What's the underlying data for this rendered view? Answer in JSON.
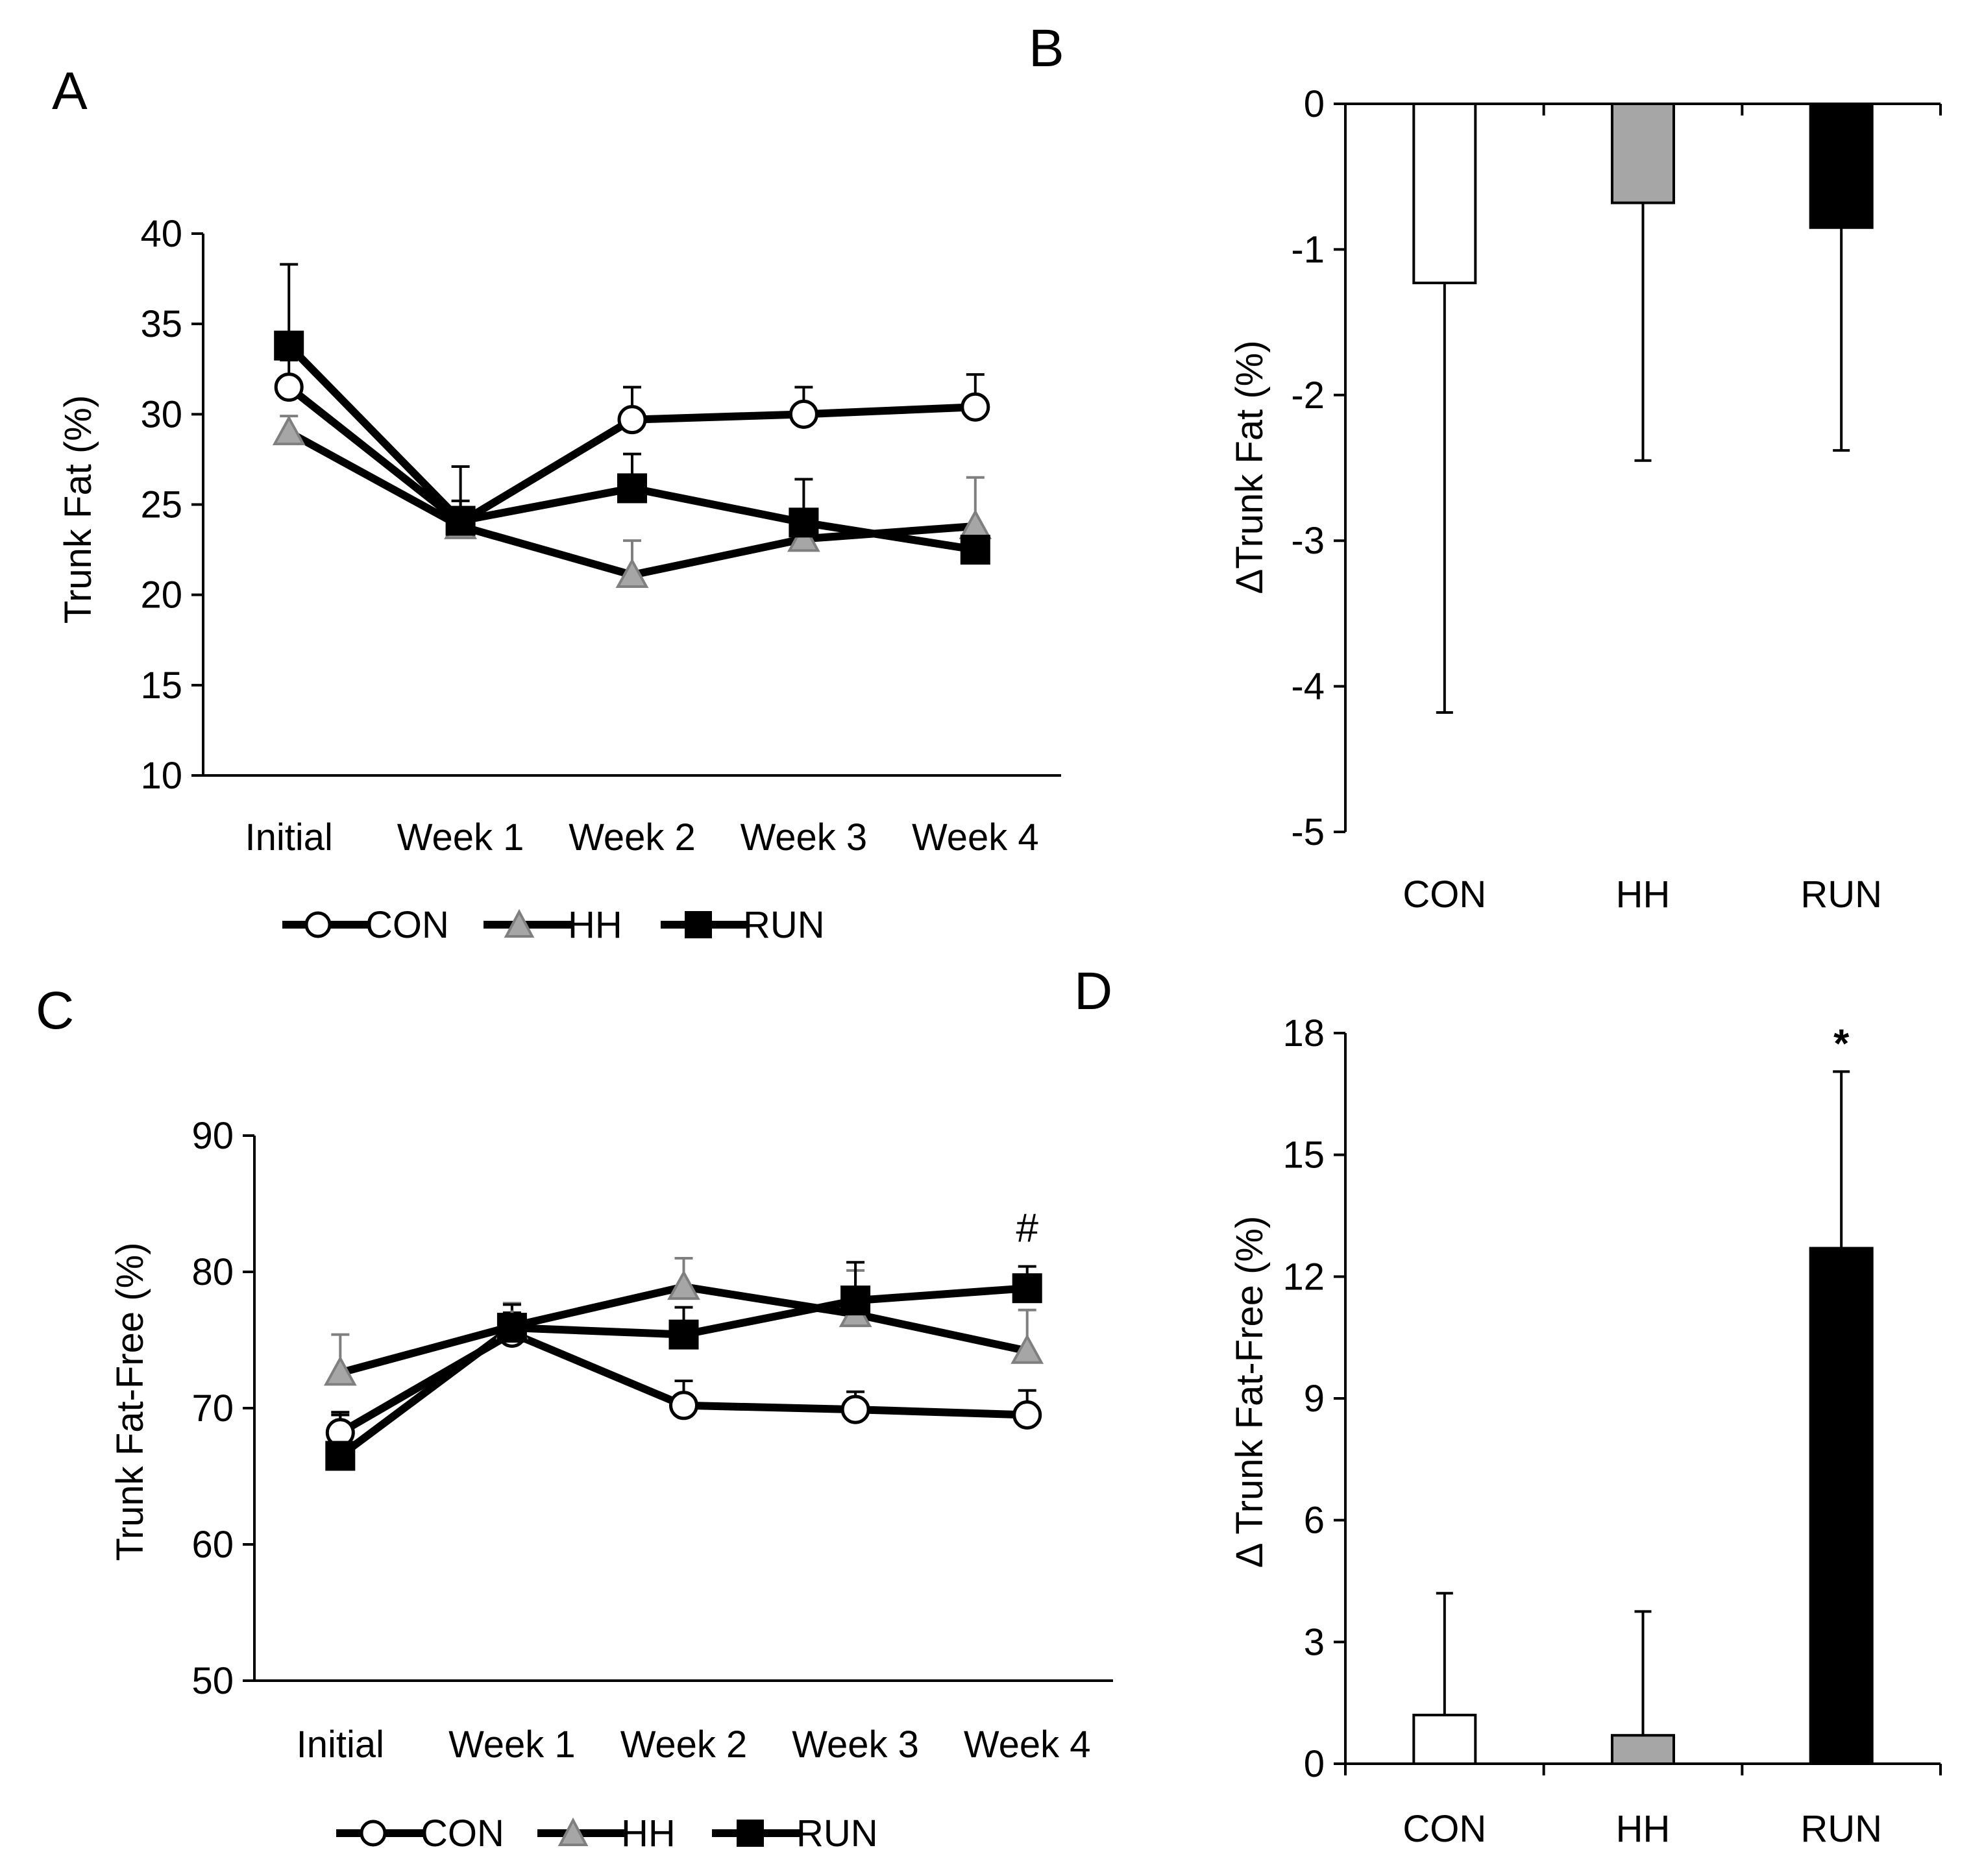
{
  "colors": {
    "CON": "#ffffff",
    "HH": "#a6a6a6",
    "RUN": "#000000",
    "stroke": "#000000",
    "grayStroke": "#7f7f7f"
  },
  "chart_data": [
    {
      "panel": "A",
      "type": "line",
      "ylabel": "Trunk Fat (%)",
      "xlabel": "",
      "categories": [
        "Initial",
        "Week 1",
        "Week 2",
        "Week 3",
        "Week 4"
      ],
      "ylim": [
        10,
        40
      ],
      "yticks": [
        10,
        15,
        20,
        25,
        30,
        35,
        40
      ],
      "series": [
        {
          "name": "CON",
          "marker": "circle",
          "values": [
            31.5,
            24.0,
            29.7,
            30.0,
            30.4
          ],
          "errors": [
            1.5,
            1.2,
            1.8,
            1.5,
            1.8
          ]
        },
        {
          "name": "HH",
          "marker": "triangle",
          "values": [
            29.0,
            23.8,
            21.1,
            23.1,
            23.8
          ],
          "errors": [
            0.9,
            1.0,
            1.9,
            1.0,
            2.7
          ]
        },
        {
          "name": "RUN",
          "marker": "square",
          "values": [
            33.8,
            24.1,
            25.9,
            24.0,
            22.5
          ],
          "errors": [
            4.5,
            3.0,
            1.9,
            2.4,
            1.0
          ]
        }
      ],
      "legend": [
        "CON",
        "HH",
        "RUN"
      ],
      "legend_position": "bottom"
    },
    {
      "panel": "B",
      "type": "bar",
      "ylabel": "ΔTrunk Fat (%)",
      "categories": [
        "CON",
        "HH",
        "RUN"
      ],
      "values": [
        -1.23,
        -0.68,
        -0.85
      ],
      "errors": [
        2.95,
        1.77,
        1.53
      ],
      "ylim": [
        -5,
        0
      ],
      "yticks": [
        0,
        -1,
        -2,
        -3,
        -4,
        -5
      ]
    },
    {
      "panel": "C",
      "type": "line",
      "ylabel": "Trunk Fat-Free (%)",
      "categories": [
        "Initial",
        "Week 1",
        "Week 2",
        "Week 3",
        "Week 4"
      ],
      "ylim": [
        50,
        90
      ],
      "yticks": [
        50,
        60,
        70,
        80,
        90
      ],
      "series": [
        {
          "name": "CON",
          "marker": "circle",
          "values": [
            68.2,
            75.5,
            70.2,
            69.9,
            69.5
          ],
          "errors": [
            1.5,
            1.5,
            1.8,
            1.3,
            1.8
          ]
        },
        {
          "name": "HH",
          "marker": "triangle",
          "values": [
            72.6,
            76.0,
            78.9,
            76.9,
            74.2
          ],
          "errors": [
            2.8,
            1.7,
            2.1,
            3.2,
            3.0
          ]
        },
        {
          "name": "RUN",
          "marker": "square",
          "values": [
            66.5,
            75.9,
            75.4,
            77.9,
            78.8
          ],
          "errors": [
            3.0,
            1.7,
            2.0,
            2.8,
            1.6
          ]
        }
      ],
      "annotations": [
        {
          "text": "#",
          "category": "Week 4"
        }
      ],
      "legend": [
        "CON",
        "HH",
        "RUN"
      ],
      "legend_position": "bottom"
    },
    {
      "panel": "D",
      "type": "bar",
      "ylabel": "Δ Trunk Fat-Free (%)",
      "categories": [
        "CON",
        "HH",
        "RUN"
      ],
      "values": [
        1.2,
        0.7,
        12.7
      ],
      "errors": [
        3.0,
        3.05,
        4.35
      ],
      "ylim": [
        0,
        18
      ],
      "yticks": [
        0,
        3,
        6,
        9,
        12,
        15,
        18
      ],
      "annotations": [
        {
          "text": "*",
          "category": "RUN"
        }
      ]
    }
  ]
}
